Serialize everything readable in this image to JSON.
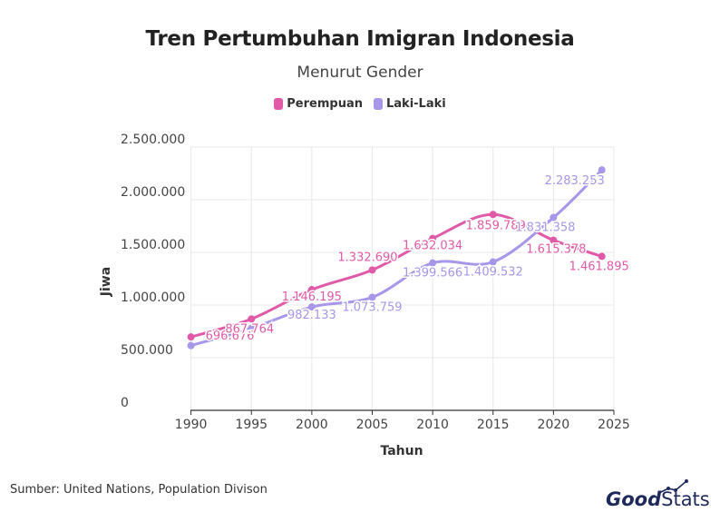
{
  "colors": {
    "perempuan": "#e05aa8",
    "laki": "#a796ea",
    "grid": "#e8e8e8",
    "axis": "#333333"
  },
  "source": "Sumber: United Nations, Population Divison",
  "logo": {
    "good": "Good",
    "stats": "Stats"
  },
  "chart_data": {
    "type": "line",
    "title": "Tren Pertumbuhan Imigran Indonesia",
    "subtitle": "Menurut Gender",
    "xlabel": "Tahun",
    "ylabel": "Jiwa",
    "xlim": [
      1985,
      2025
    ],
    "ylim": [
      0,
      2500000
    ],
    "xticks": [
      1990,
      1995,
      2000,
      2005,
      2010,
      2015,
      2020,
      2025
    ],
    "xtick_labels": [
      "1990",
      "1995",
      "2000",
      "2005",
      "2010",
      "2015",
      "2020",
      "2025"
    ],
    "yticks": [
      0,
      500000,
      1000000,
      1500000,
      2000000,
      2500000
    ],
    "ytick_labels": [
      "0",
      "500.000",
      "1.000.000",
      "1.500.000",
      "2.000.000",
      "2.500.000"
    ],
    "grid": true,
    "legend": "top-center",
    "x": [
      1990,
      1995,
      2000,
      2005,
      2010,
      2015,
      2020,
      2024
    ],
    "series": [
      {
        "name": "Perempuan",
        "color": "#e05aa8",
        "values": [
          696676,
          867764,
          1146195,
          1332690,
          1632034,
          1859789,
          1615378,
          1461895
        ],
        "labels": [
          "696.676",
          "867.764",
          "1.146.195",
          "1.332.690",
          "1.632.034",
          "1.859.789",
          "1.615.378",
          "1.461.895"
        ]
      },
      {
        "name": "Laki-Laki",
        "color": "#a796ea",
        "values": [
          615000,
          780000,
          982133,
          1073759,
          1399566,
          1409532,
          1831358,
          2283253
        ],
        "labels": [
          "",
          "",
          "982.133",
          "1.073.759",
          "1.399.566",
          "1.409.532",
          "1.831.358",
          "2.283.253"
        ]
      }
    ]
  }
}
